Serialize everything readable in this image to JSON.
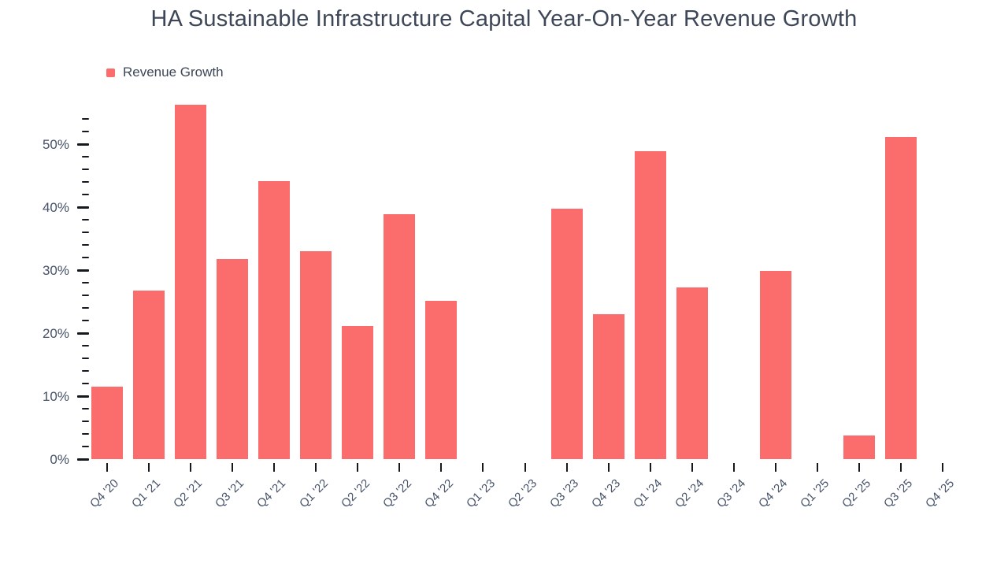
{
  "title": "HA Sustainable Infrastructure Capital Year-On-Year Revenue Growth",
  "legend": {
    "label": "Revenue Growth"
  },
  "colors": {
    "bar": "#FB6D6D",
    "tick": "#14181F",
    "title_text": "#3D4757",
    "axis_text": "#47536A"
  },
  "chart_data": {
    "type": "bar",
    "title": "HA Sustainable Infrastructure Capital Year-On-Year Revenue Growth",
    "xlabel": "",
    "ylabel": "",
    "categories": [
      "Q4 '20",
      "Q1 '21",
      "Q2 '21",
      "Q3 '21",
      "Q4 '21",
      "Q1 '22",
      "Q2 '22",
      "Q3 '22",
      "Q4 '22",
      "Q1 '23",
      "Q2 '23",
      "Q3 '23",
      "Q4 '23",
      "Q1 '24",
      "Q2 '24",
      "Q3 '24",
      "Q4 '24",
      "Q1 '25",
      "Q2 '25",
      "Q3 '25",
      "Q4 '25"
    ],
    "series": [
      {
        "name": "Revenue Growth",
        "unit": "%",
        "values": [
          11.5,
          26.7,
          56.2,
          31.8,
          44.1,
          33.0,
          21.1,
          38.9,
          25.1,
          null,
          null,
          39.8,
          23.0,
          48.9,
          27.2,
          null,
          29.9,
          null,
          3.8,
          51.1,
          null
        ]
      }
    ],
    "y_tick_labels": [
      "0%",
      "10%",
      "20%",
      "30%",
      "40%",
      "50%"
    ],
    "ylim": [
      0,
      57
    ],
    "y_major_step": 10,
    "y_minor_step": 2,
    "grid": false,
    "legend_position": "top-left",
    "bar_color": "#FB6D6D"
  }
}
